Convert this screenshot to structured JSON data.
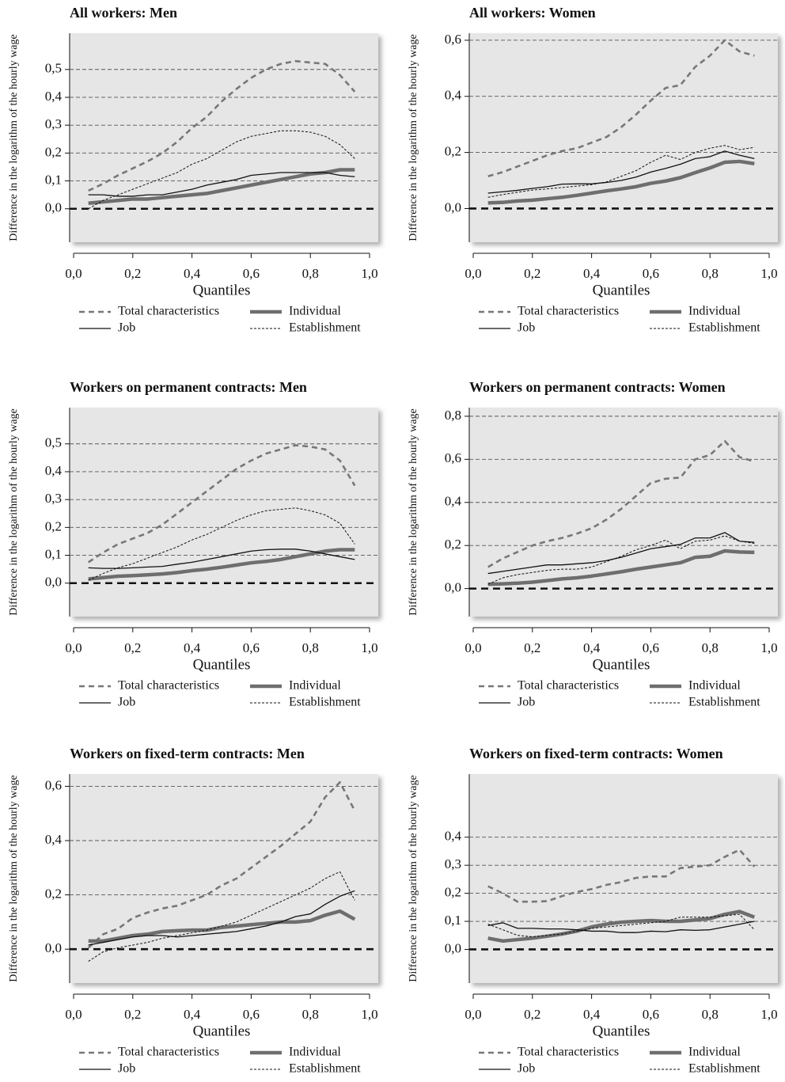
{
  "chart_data": [
    {
      "type": "line",
      "title": "All workers: Men",
      "xlabel": "Quantiles",
      "ylabel": "Difference in the logarithm of the hourly wage",
      "x": [
        0.05,
        0.1,
        0.15,
        0.2,
        0.25,
        0.3,
        0.35,
        0.4,
        0.45,
        0.5,
        0.55,
        0.6,
        0.65,
        0.7,
        0.75,
        0.8,
        0.85,
        0.9,
        0.95
      ],
      "xlim": [
        0,
        1
      ],
      "xticks": [
        {
          "value": 0,
          "label": "0,0"
        },
        {
          "value": 0.2,
          "label": "0,2"
        },
        {
          "value": 0.4,
          "label": "0,4"
        },
        {
          "value": 0.6,
          "label": "0,6"
        },
        {
          "value": 0.8,
          "label": "0,8"
        },
        {
          "value": 1,
          "label": "1,0"
        }
      ],
      "ylim": [
        -0.12,
        0.63
      ],
      "yticks": [
        {
          "value": 0,
          "label": "0,0"
        },
        {
          "value": 0.1,
          "label": "0,1"
        },
        {
          "value": 0.2,
          "label": "0,2"
        },
        {
          "value": 0.3,
          "label": "0,3"
        },
        {
          "value": 0.4,
          "label": "0,4"
        },
        {
          "value": 0.5,
          "label": "0,5"
        }
      ],
      "grid": true,
      "series": [
        {
          "name": "Total characteristics",
          "color": "#777777",
          "values": [
            0.065,
            0.09,
            0.12,
            0.145,
            0.17,
            0.2,
            0.24,
            0.29,
            0.33,
            0.385,
            0.43,
            0.47,
            0.5,
            0.52,
            0.53,
            0.525,
            0.52,
            0.48,
            0.42
          ]
        },
        {
          "name": "Individual",
          "color": "#6e6e6e",
          "values": [
            0.02,
            0.025,
            0.03,
            0.035,
            0.035,
            0.04,
            0.045,
            0.05,
            0.055,
            0.065,
            0.075,
            0.085,
            0.095,
            0.105,
            0.115,
            0.125,
            0.13,
            0.14,
            0.14
          ]
        },
        {
          "name": "Job",
          "color": "#111111",
          "values": [
            0.05,
            0.05,
            0.045,
            0.045,
            0.05,
            0.05,
            0.06,
            0.07,
            0.085,
            0.095,
            0.105,
            0.12,
            0.125,
            0.13,
            0.13,
            0.13,
            0.13,
            0.12,
            0.115
          ]
        },
        {
          "name": "Establishment",
          "color": "#111111",
          "values": [
            0.0,
            0.03,
            0.05,
            0.07,
            0.09,
            0.11,
            0.13,
            0.16,
            0.18,
            0.21,
            0.24,
            0.26,
            0.27,
            0.28,
            0.28,
            0.275,
            0.26,
            0.23,
            0.18
          ]
        }
      ]
    },
    {
      "type": "line",
      "title": "All workers: Women",
      "xlabel": "Quantiles",
      "ylabel": "Difference in the logarithm of the hourly wage",
      "x": [
        0.05,
        0.1,
        0.15,
        0.2,
        0.25,
        0.3,
        0.35,
        0.4,
        0.45,
        0.5,
        0.55,
        0.6,
        0.65,
        0.7,
        0.75,
        0.8,
        0.85,
        0.9,
        0.95
      ],
      "xlim": [
        0,
        1
      ],
      "xticks": [
        {
          "value": 0,
          "label": "0,0"
        },
        {
          "value": 0.2,
          "label": "0,2"
        },
        {
          "value": 0.4,
          "label": "0,4"
        },
        {
          "value": 0.6,
          "label": "0,6"
        },
        {
          "value": 0.8,
          "label": "0,8"
        },
        {
          "value": 1,
          "label": "1,0"
        }
      ],
      "ylim": [
        -0.12,
        0.625
      ],
      "yticks": [
        {
          "value": 0,
          "label": "0,0"
        },
        {
          "value": 0.2,
          "label": "0,2"
        },
        {
          "value": 0.4,
          "label": "0,4"
        },
        {
          "value": 0.6,
          "label": "0,6"
        }
      ],
      "grid": true,
      "series": [
        {
          "name": "Total characteristics",
          "color": "#777777",
          "values": [
            0.115,
            0.13,
            0.15,
            0.17,
            0.19,
            0.205,
            0.215,
            0.235,
            0.255,
            0.29,
            0.335,
            0.385,
            0.43,
            0.44,
            0.505,
            0.545,
            0.6,
            0.56,
            0.545
          ]
        },
        {
          "name": "Individual",
          "color": "#6e6e6e",
          "values": [
            0.02,
            0.022,
            0.027,
            0.03,
            0.035,
            0.04,
            0.047,
            0.055,
            0.063,
            0.07,
            0.078,
            0.09,
            0.098,
            0.11,
            0.128,
            0.145,
            0.165,
            0.168,
            0.16
          ]
        },
        {
          "name": "Job",
          "color": "#111111",
          "values": [
            0.055,
            0.06,
            0.065,
            0.072,
            0.078,
            0.087,
            0.088,
            0.088,
            0.093,
            0.1,
            0.112,
            0.13,
            0.143,
            0.158,
            0.178,
            0.185,
            0.205,
            0.19,
            0.178
          ]
        },
        {
          "name": "Establishment",
          "color": "#111111",
          "values": [
            0.04,
            0.05,
            0.058,
            0.066,
            0.07,
            0.075,
            0.08,
            0.085,
            0.095,
            0.115,
            0.135,
            0.165,
            0.19,
            0.175,
            0.2,
            0.215,
            0.225,
            0.21,
            0.218
          ]
        }
      ]
    },
    {
      "type": "line",
      "title": "Workers on permanent contracts: Men",
      "xlabel": "Quantiles",
      "ylabel": "Difference in the logarithm of the hourly wage",
      "x": [
        0.05,
        0.1,
        0.15,
        0.2,
        0.25,
        0.3,
        0.35,
        0.4,
        0.45,
        0.5,
        0.55,
        0.6,
        0.65,
        0.7,
        0.75,
        0.8,
        0.85,
        0.9,
        0.95
      ],
      "xlim": [
        0,
        1
      ],
      "xticks": [
        {
          "value": 0,
          "label": "0,0"
        },
        {
          "value": 0.2,
          "label": "0,2"
        },
        {
          "value": 0.4,
          "label": "0,4"
        },
        {
          "value": 0.6,
          "label": "0,6"
        },
        {
          "value": 0.8,
          "label": "0,8"
        },
        {
          "value": 1,
          "label": "1,0"
        }
      ],
      "ylim": [
        -0.12,
        0.63
      ],
      "yticks": [
        {
          "value": 0,
          "label": "0,0"
        },
        {
          "value": 0.1,
          "label": "0,1"
        },
        {
          "value": 0.2,
          "label": "0,2"
        },
        {
          "value": 0.3,
          "label": "0,3"
        },
        {
          "value": 0.4,
          "label": "0,4"
        },
        {
          "value": 0.5,
          "label": "0,5"
        }
      ],
      "grid": true,
      "series": [
        {
          "name": "Total characteristics",
          "color": "#777777",
          "values": [
            0.075,
            0.11,
            0.14,
            0.16,
            0.18,
            0.21,
            0.25,
            0.29,
            0.33,
            0.37,
            0.41,
            0.44,
            0.465,
            0.48,
            0.495,
            0.49,
            0.48,
            0.44,
            0.35
          ]
        },
        {
          "name": "Individual",
          "color": "#6e6e6e",
          "values": [
            0.015,
            0.02,
            0.025,
            0.027,
            0.03,
            0.033,
            0.038,
            0.045,
            0.05,
            0.057,
            0.065,
            0.073,
            0.078,
            0.085,
            0.095,
            0.105,
            0.115,
            0.12,
            0.12
          ]
        },
        {
          "name": "Job",
          "color": "#111111",
          "values": [
            0.055,
            0.053,
            0.053,
            0.055,
            0.058,
            0.06,
            0.068,
            0.075,
            0.085,
            0.095,
            0.105,
            0.115,
            0.12,
            0.122,
            0.122,
            0.115,
            0.105,
            0.095,
            0.085
          ]
        },
        {
          "name": "Establishment",
          "color": "#111111",
          "values": [
            0.01,
            0.035,
            0.055,
            0.07,
            0.09,
            0.11,
            0.13,
            0.155,
            0.175,
            0.2,
            0.225,
            0.245,
            0.26,
            0.265,
            0.27,
            0.26,
            0.245,
            0.215,
            0.14
          ]
        }
      ]
    },
    {
      "type": "line",
      "title": "Workers on permanent contracts: Women",
      "xlabel": "Quantiles",
      "ylabel": "Difference in the logarithm of the hourly wage",
      "x": [
        0.05,
        0.1,
        0.15,
        0.2,
        0.25,
        0.3,
        0.35,
        0.4,
        0.45,
        0.5,
        0.55,
        0.6,
        0.65,
        0.7,
        0.75,
        0.8,
        0.85,
        0.9,
        0.95
      ],
      "xlim": [
        0,
        1
      ],
      "xticks": [
        {
          "value": 0,
          "label": "0,0"
        },
        {
          "value": 0.2,
          "label": "0,2"
        },
        {
          "value": 0.4,
          "label": "0,4"
        },
        {
          "value": 0.6,
          "label": "0,6"
        },
        {
          "value": 0.8,
          "label": "0,8"
        },
        {
          "value": 1,
          "label": "1,0"
        }
      ],
      "ylim": [
        -0.13,
        0.84
      ],
      "yticks": [
        {
          "value": 0,
          "label": "0,0"
        },
        {
          "value": 0.2,
          "label": "0,2"
        },
        {
          "value": 0.4,
          "label": "0,4"
        },
        {
          "value": 0.6,
          "label": "0,6"
        },
        {
          "value": 0.8,
          "label": "0,8"
        }
      ],
      "grid": true,
      "series": [
        {
          "name": "Total characteristics",
          "color": "#777777",
          "values": [
            0.1,
            0.14,
            0.17,
            0.2,
            0.22,
            0.235,
            0.255,
            0.28,
            0.32,
            0.37,
            0.43,
            0.49,
            0.51,
            0.515,
            0.6,
            0.62,
            0.685,
            0.61,
            0.59
          ]
        },
        {
          "name": "Individual",
          "color": "#6e6e6e",
          "values": [
            0.02,
            0.022,
            0.025,
            0.03,
            0.037,
            0.045,
            0.05,
            0.058,
            0.068,
            0.078,
            0.09,
            0.1,
            0.11,
            0.12,
            0.145,
            0.15,
            0.175,
            0.17,
            0.168
          ]
        },
        {
          "name": "Job",
          "color": "#111111",
          "values": [
            0.07,
            0.08,
            0.09,
            0.1,
            0.11,
            0.11,
            0.115,
            0.12,
            0.13,
            0.145,
            0.165,
            0.185,
            0.195,
            0.205,
            0.235,
            0.235,
            0.26,
            0.22,
            0.215
          ]
        },
        {
          "name": "Establishment",
          "color": "#111111",
          "values": [
            0.02,
            0.05,
            0.065,
            0.075,
            0.085,
            0.09,
            0.09,
            0.1,
            0.125,
            0.15,
            0.18,
            0.2,
            0.225,
            0.185,
            0.22,
            0.225,
            0.245,
            0.22,
            0.21
          ]
        }
      ]
    },
    {
      "type": "line",
      "title": "Workers on fixed-term contracts: Men",
      "xlabel": "Quantiles",
      "ylabel": "Difference in the logarithm of the hourly wage",
      "x": [
        0.05,
        0.1,
        0.15,
        0.2,
        0.25,
        0.3,
        0.35,
        0.4,
        0.45,
        0.5,
        0.55,
        0.6,
        0.65,
        0.7,
        0.75,
        0.8,
        0.85,
        0.9,
        0.95
      ],
      "xlim": [
        0,
        1
      ],
      "xticks": [
        {
          "value": 0,
          "label": "0,0"
        },
        {
          "value": 0.2,
          "label": "0,2"
        },
        {
          "value": 0.4,
          "label": "0,4"
        },
        {
          "value": 0.6,
          "label": "0,6"
        },
        {
          "value": 0.8,
          "label": "0,8"
        },
        {
          "value": 1,
          "label": "1,0"
        }
      ],
      "ylim": [
        -0.125,
        0.645
      ],
      "yticks": [
        {
          "value": 0,
          "label": "0,0"
        },
        {
          "value": 0.2,
          "label": "0,2"
        },
        {
          "value": 0.4,
          "label": "0,4"
        },
        {
          "value": 0.6,
          "label": "0,6"
        }
      ],
      "grid": true,
      "series": [
        {
          "name": "Total characteristics",
          "color": "#777777",
          "values": [
            0.005,
            0.055,
            0.075,
            0.115,
            0.135,
            0.15,
            0.16,
            0.18,
            0.2,
            0.235,
            0.26,
            0.3,
            0.34,
            0.38,
            0.425,
            0.47,
            0.56,
            0.615,
            0.51
          ]
        },
        {
          "name": "Individual",
          "color": "#6e6e6e",
          "values": [
            0.03,
            0.03,
            0.04,
            0.05,
            0.055,
            0.065,
            0.068,
            0.07,
            0.07,
            0.08,
            0.085,
            0.09,
            0.095,
            0.1,
            0.1,
            0.105,
            0.125,
            0.14,
            0.11
          ]
        },
        {
          "name": "Job",
          "color": "#111111",
          "values": [
            0.015,
            0.025,
            0.035,
            0.045,
            0.05,
            0.05,
            0.045,
            0.05,
            0.055,
            0.06,
            0.065,
            0.075,
            0.085,
            0.1,
            0.12,
            0.13,
            0.165,
            0.195,
            0.215
          ]
        },
        {
          "name": "Establishment",
          "color": "#111111",
          "values": [
            -0.045,
            -0.01,
            0.005,
            0.015,
            0.025,
            0.04,
            0.05,
            0.06,
            0.07,
            0.085,
            0.1,
            0.125,
            0.15,
            0.175,
            0.2,
            0.225,
            0.26,
            0.285,
            0.18
          ]
        }
      ]
    },
    {
      "type": "line",
      "title": "Workers on fixed-term contracts: Women",
      "xlabel": "Quantiles",
      "ylabel": "Difference in the logarithm of the hourly wage",
      "x": [
        0.05,
        0.1,
        0.15,
        0.2,
        0.25,
        0.3,
        0.35,
        0.4,
        0.45,
        0.5,
        0.55,
        0.6,
        0.65,
        0.7,
        0.75,
        0.8,
        0.85,
        0.9,
        0.95
      ],
      "xlim": [
        0,
        1
      ],
      "xticks": [
        {
          "value": 0,
          "label": "0,0"
        },
        {
          "value": 0.2,
          "label": "0,2"
        },
        {
          "value": 0.4,
          "label": "0,4"
        },
        {
          "value": 0.6,
          "label": "0,6"
        },
        {
          "value": 0.8,
          "label": "0,8"
        },
        {
          "value": 1,
          "label": "1,0"
        }
      ],
      "ylim": [
        -0.12,
        0.625
      ],
      "yticks": [
        {
          "value": 0,
          "label": "0,0"
        },
        {
          "value": 0.1,
          "label": "0,1"
        },
        {
          "value": 0.2,
          "label": "0,2"
        },
        {
          "value": 0.3,
          "label": "0,3"
        },
        {
          "value": 0.4,
          "label": "0,4"
        }
      ],
      "grid": true,
      "series": [
        {
          "name": "Total characteristics",
          "color": "#777777",
          "values": [
            0.225,
            0.2,
            0.17,
            0.17,
            0.172,
            0.19,
            0.205,
            0.215,
            0.23,
            0.24,
            0.255,
            0.26,
            0.26,
            0.29,
            0.295,
            0.3,
            0.33,
            0.355,
            0.295
          ]
        },
        {
          "name": "Individual",
          "color": "#6e6e6e",
          "values": [
            0.04,
            0.03,
            0.035,
            0.04,
            0.047,
            0.055,
            0.065,
            0.08,
            0.09,
            0.097,
            0.1,
            0.103,
            0.1,
            0.1,
            0.105,
            0.11,
            0.125,
            0.135,
            0.115
          ]
        },
        {
          "name": "Job",
          "color": "#111111",
          "values": [
            0.085,
            0.095,
            0.075,
            0.075,
            0.073,
            0.073,
            0.07,
            0.065,
            0.065,
            0.06,
            0.06,
            0.065,
            0.063,
            0.07,
            0.068,
            0.07,
            0.08,
            0.09,
            0.1
          ]
        },
        {
          "name": "Establishment",
          "color": "#111111",
          "values": [
            0.09,
            0.07,
            0.05,
            0.045,
            0.05,
            0.055,
            0.065,
            0.075,
            0.08,
            0.085,
            0.09,
            0.095,
            0.1,
            0.115,
            0.115,
            0.115,
            0.12,
            0.125,
            0.07
          ]
        }
      ]
    }
  ]
}
